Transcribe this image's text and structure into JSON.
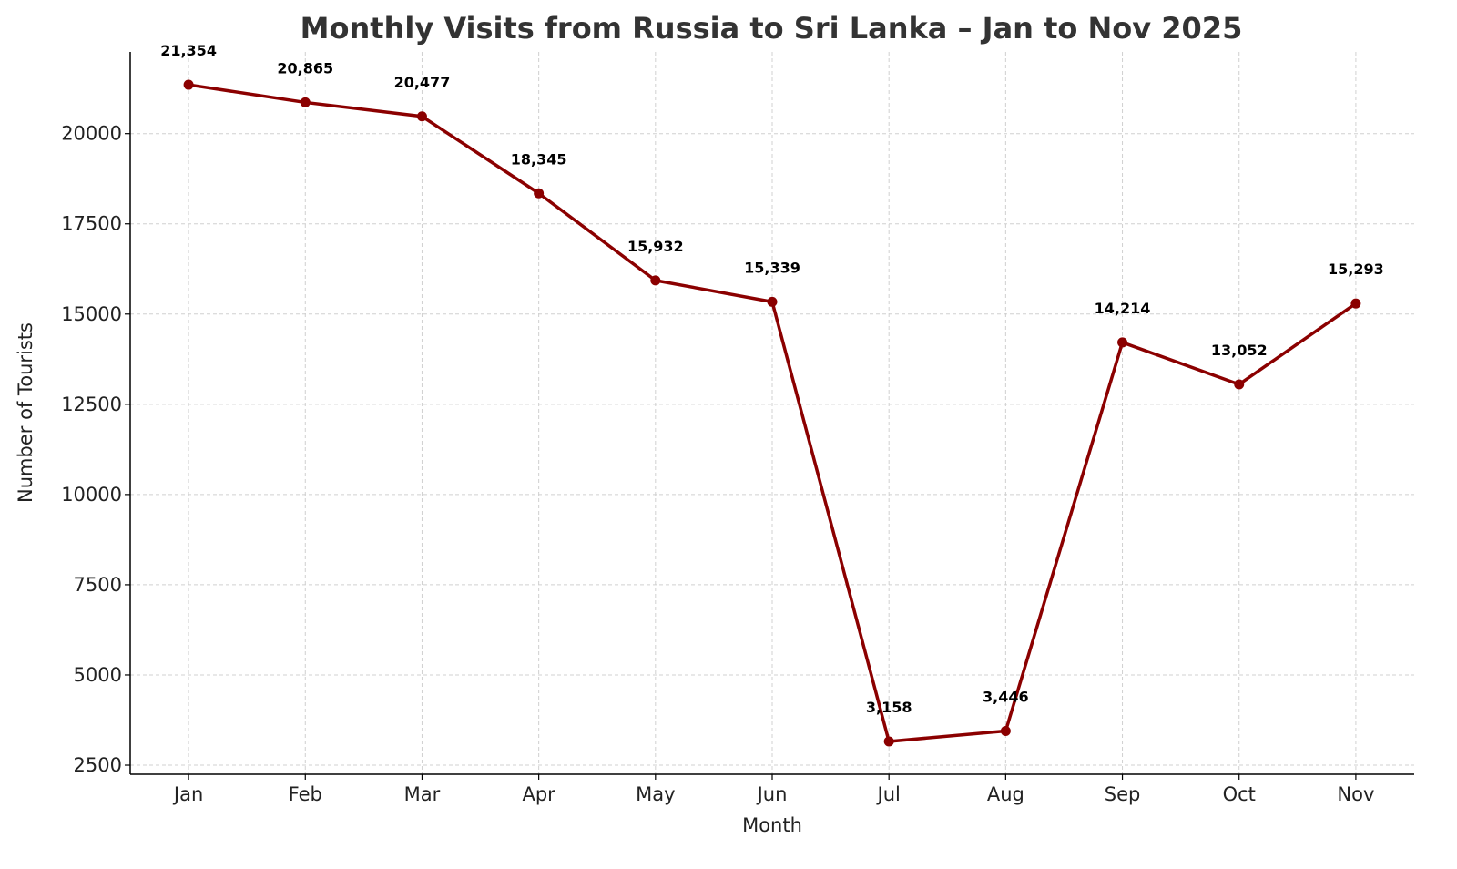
{
  "chart_data": {
    "type": "line",
    "title": "Monthly Visits from Russia to Sri Lanka – Jan to Nov 2025",
    "xlabel": "Month",
    "ylabel": "Number of Tourists",
    "categories": [
      "Jan",
      "Feb",
      "Mar",
      "Apr",
      "May",
      "Jun",
      "Jul",
      "Aug",
      "Sep",
      "Oct",
      "Nov"
    ],
    "values": [
      21354,
      20865,
      20477,
      18345,
      15932,
      15339,
      3158,
      3446,
      14214,
      13052,
      15293
    ],
    "data_labels": [
      "21,354",
      "20,865",
      "20,477",
      "18,345",
      "15,932",
      "15,339",
      "3,158",
      "3,446",
      "14,214",
      "13,052",
      "15,293"
    ],
    "yticks": [
      2500,
      5000,
      7500,
      10000,
      12500,
      15000,
      17500,
      20000
    ],
    "ylim": [
      2248,
      22264
    ],
    "grid": true,
    "line_color": "#8b0000",
    "marker": "circle"
  }
}
